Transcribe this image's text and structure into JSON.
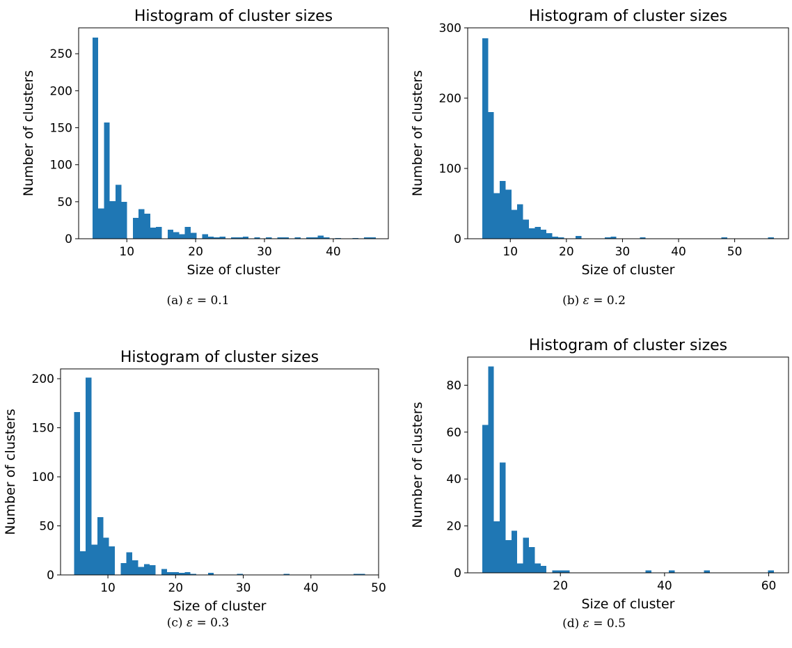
{
  "chart_data": [
    {
      "type": "bar",
      "caption_prefix": "(a)",
      "caption_eps": "ε",
      "caption_rest": "= 0.1",
      "title": "Histogram of cluster sizes",
      "xlabel": "Size of cluster",
      "ylabel": "Number of clusters",
      "color": "#1f77b4",
      "xlim": [
        3,
        48
      ],
      "ylim": [
        0,
        285
      ],
      "xticks": [
        10,
        20,
        30,
        40
      ],
      "yticks": [
        0,
        50,
        100,
        150,
        200,
        250
      ],
      "bin_start": 5,
      "bin_width": 0.84,
      "values": [
        272,
        41,
        157,
        51,
        73,
        50,
        0,
        28,
        40,
        34,
        15,
        16,
        0,
        12,
        9,
        6,
        16,
        8,
        0,
        6,
        3,
        2,
        3,
        0,
        2,
        2,
        3,
        0,
        2,
        0,
        2,
        0,
        2,
        2,
        0,
        2,
        0,
        2,
        2,
        4,
        2,
        0,
        1,
        0,
        0,
        1,
        0,
        2,
        2,
        0
      ]
    },
    {
      "type": "bar",
      "caption_prefix": "(b)",
      "caption_eps": "ε",
      "caption_rest": "= 0.2",
      "title": "Histogram of cluster sizes",
      "xlabel": "Size of cluster",
      "ylabel": "Number of clusters",
      "color": "#1f77b4",
      "xlim": [
        2.4,
        59.6
      ],
      "ylim": [
        0,
        300
      ],
      "xticks": [
        10,
        20,
        30,
        40,
        50
      ],
      "yticks": [
        0,
        100,
        200,
        300
      ],
      "bin_start": 5,
      "bin_width": 1.04,
      "values": [
        285,
        180,
        65,
        82,
        70,
        41,
        49,
        27,
        15,
        17,
        13,
        8,
        3,
        2,
        0,
        0,
        4,
        0,
        0,
        0,
        0,
        2,
        3,
        0,
        0,
        0,
        0,
        2,
        0,
        0,
        0,
        0,
        0,
        0,
        0,
        0,
        0,
        0,
        0,
        0,
        0,
        2,
        0,
        0,
        0,
        0,
        0,
        0,
        0,
        2
      ]
    },
    {
      "type": "bar",
      "caption_prefix": "(c)",
      "caption_eps": "ε",
      "caption_rest": "= 0.3",
      "title": "Histogram of cluster sizes",
      "xlabel": "Size of cluster",
      "ylabel": "Number of clusters",
      "color": "#1f77b4",
      "xlim": [
        3,
        50
      ],
      "ylim": [
        0,
        210
      ],
      "xticks": [
        10,
        20,
        30,
        40,
        50
      ],
      "yticks": [
        0,
        50,
        100,
        150,
        200
      ],
      "bin_start": 5,
      "bin_width": 0.86,
      "values": [
        166,
        24,
        201,
        31,
        59,
        38,
        29,
        0,
        12,
        23,
        15,
        8,
        11,
        10,
        0,
        6,
        3,
        3,
        2,
        3,
        1,
        0,
        0,
        2,
        0,
        0,
        0,
        0,
        1,
        0,
        0,
        0,
        0,
        0,
        0,
        0,
        1,
        0,
        0,
        0,
        0,
        0,
        0,
        0,
        0,
        0,
        0,
        0,
        1,
        1
      ]
    },
    {
      "type": "bar",
      "caption_prefix": "(d)",
      "caption_eps": "ε",
      "caption_rest": "= 0.5",
      "title": "Histogram of cluster sizes",
      "xlabel": "Size of cluster",
      "ylabel": "Number of clusters",
      "color": "#1f77b4",
      "xlim": [
        2.2,
        63.8
      ],
      "ylim": [
        0,
        92
      ],
      "xticks": [
        20,
        40,
        60
      ],
      "yticks": [
        0,
        20,
        40,
        60,
        80
      ],
      "bin_start": 5,
      "bin_width": 1.12,
      "values": [
        63,
        88,
        22,
        47,
        14,
        18,
        4,
        15,
        11,
        4,
        3,
        0,
        1,
        1,
        1,
        0,
        0,
        0,
        0,
        0,
        0,
        0,
        0,
        0,
        0,
        0,
        0,
        0,
        1,
        0,
        0,
        0,
        1,
        0,
        0,
        0,
        0,
        0,
        1,
        0,
        0,
        0,
        0,
        0,
        0,
        0,
        0,
        0,
        0,
        1
      ]
    }
  ]
}
